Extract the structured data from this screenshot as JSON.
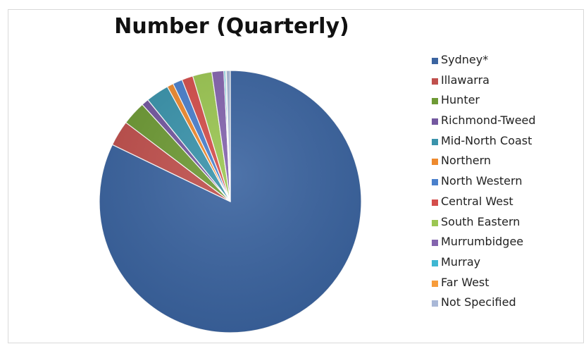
{
  "chart_data": {
    "type": "pie",
    "title": "Number (Quarterly)",
    "legend_position": "right",
    "categories": [
      "Sydney*",
      "Illawarra",
      "Hunter",
      "Richmond-Tweed",
      "Mid-North Coast",
      "Northern",
      "North Western",
      "Central West",
      "South Eastern",
      "Murrumbidgee",
      "Murray",
      "Far West",
      "Not Specified"
    ],
    "values": [
      83.3,
      3.2,
      3.0,
      0.9,
      2.9,
      0.8,
      1.2,
      1.4,
      2.4,
      1.5,
      0.2,
      0.1,
      0.5
    ],
    "colors": [
      "#3B64A0",
      "#C0504D",
      "#6E9A35",
      "#7458A0",
      "#3A93AB",
      "#EE8A2E",
      "#4A80CC",
      "#D44E4B",
      "#9BC652",
      "#8464AE",
      "#3FB7D2",
      "#F79C3B",
      "#A9B8D7"
    ]
  }
}
